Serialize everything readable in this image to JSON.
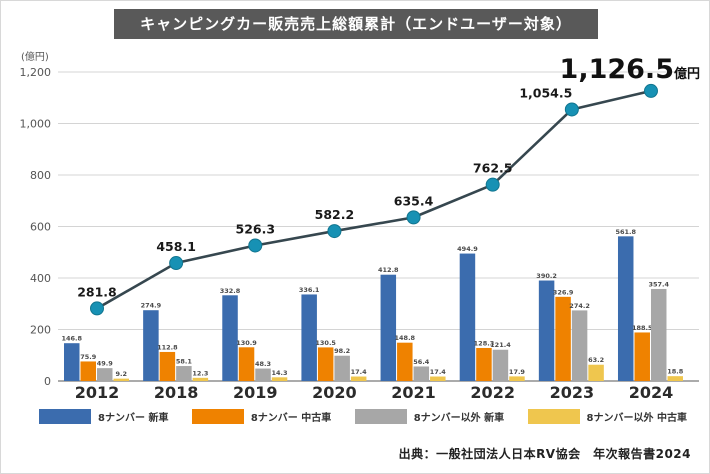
{
  "title": "キャンピングカー販売売上総額累計（エンドユーザー対象）",
  "source": "出典：一般社団法人日本RV協会　年次報告書2024",
  "y_axis": {
    "unit": "(億円)",
    "tick_values": [
      0,
      200,
      400,
      600,
      800,
      1000,
      1200
    ],
    "tick_labels": [
      "0",
      "200",
      "400",
      "600",
      "800",
      "1,000",
      "1,200"
    ],
    "max": 1200
  },
  "chart_data": {
    "type": "bar",
    "subtype": "grouped bars with overlaid line of yearly totals",
    "categories": [
      "2012",
      "2018",
      "2019",
      "2020",
      "2021",
      "2022",
      "2023",
      "2024"
    ],
    "ylim": [
      0,
      1200
    ],
    "grid": true,
    "legend_position": "bottom",
    "line_series": {
      "name": "売上総額累計",
      "values": [
        281.8,
        458.1,
        526.3,
        582.2,
        635.4,
        762.5,
        1054.5,
        1126.5
      ],
      "labels": [
        "281.8",
        "458.1",
        "526.3",
        "582.2",
        "635.4",
        "762.5",
        "1,054.5",
        "1,126.5"
      ],
      "final_label_value": "1,126.5",
      "final_label_suffix": "億円",
      "color": "#36474f",
      "marker_color": "#1791b4"
    },
    "series": [
      {
        "key": "number8-new",
        "name": "8ナンバー 新車",
        "color": "#3b6cae",
        "values": [
          146.8,
          274.9,
          332.8,
          336.1,
          412.8,
          494.9,
          390.2,
          561.8
        ]
      },
      {
        "key": "number8-used",
        "name": "8ナンバー 中古車",
        "color": "#ef8200",
        "values": [
          75.9,
          112.8,
          130.9,
          130.5,
          148.8,
          128.3,
          326.9,
          188.5
        ]
      },
      {
        "key": "non8-new",
        "name": "8ナンバー以外 新車",
        "color": "#a7a7a7",
        "values": [
          49.9,
          58.1,
          48.3,
          98.2,
          56.4,
          121.4,
          274.2,
          357.4
        ]
      },
      {
        "key": "non8-used",
        "name": "8ナンバー以外 中古車",
        "color": "#efc64e",
        "values": [
          9.2,
          12.3,
          14.3,
          17.4,
          17.4,
          17.9,
          63.2,
          18.8
        ]
      }
    ]
  },
  "legend": {
    "items": [
      {
        "key": "number8-new",
        "label": "8ナンバー 新車",
        "color": "#3b6cae"
      },
      {
        "key": "number8-used",
        "label": "8ナンバー 中古車",
        "color": "#ef8200"
      },
      {
        "key": "non8-new",
        "label": "8ナンバー以外 新車",
        "color": "#a7a7a7"
      },
      {
        "key": "non8-used",
        "label": "8ナンバー以外 中古車",
        "color": "#efc64e"
      }
    ]
  }
}
